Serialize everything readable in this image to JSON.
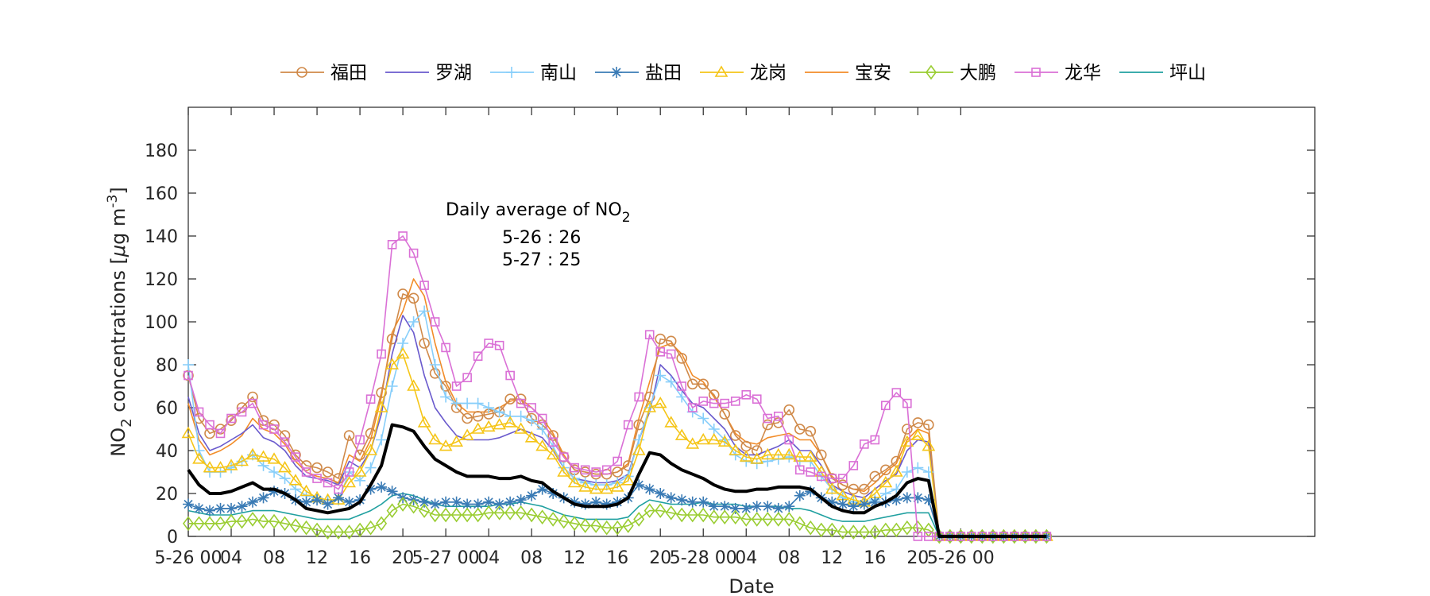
{
  "chart_data": {
    "type": "line",
    "xlabel": "Date",
    "ylabel": "NO",
    "ylabel_sub": "2",
    "ylabel_rest": " concentrations [",
    "ylabel_mu": "μ",
    "ylabel_unit": "g m",
    "ylabel_sup": "-3",
    "ylabel_close": "]",
    "ylim": [
      0,
      200
    ],
    "yticks": [
      0,
      20,
      40,
      60,
      80,
      100,
      120,
      140,
      160,
      180
    ],
    "xlim": [
      0,
      105
    ],
    "xticks": [
      {
        "x": 0,
        "label": "5-26 00"
      },
      {
        "x": 4,
        "label": "04"
      },
      {
        "x": 8,
        "label": "08"
      },
      {
        "x": 12,
        "label": "12"
      },
      {
        "x": 16,
        "label": "16"
      },
      {
        "x": 20,
        "label": "20"
      },
      {
        "x": 24,
        "label": "5-27 00"
      },
      {
        "x": 28,
        "label": "04"
      },
      {
        "x": 32,
        "label": "08"
      },
      {
        "x": 36,
        "label": "12"
      },
      {
        "x": 40,
        "label": "16"
      },
      {
        "x": 44,
        "label": "20"
      },
      {
        "x": 48,
        "label": "5-28 00"
      },
      {
        "x": 52,
        "label": "04"
      },
      {
        "x": 56,
        "label": "08"
      },
      {
        "x": 60,
        "label": "12"
      },
      {
        "x": 64,
        "label": "16"
      },
      {
        "x": 68,
        "label": "20"
      },
      {
        "x": 72,
        "label": "5-26 00"
      }
    ],
    "grid": false,
    "legend_placement": "top",
    "annotation": {
      "line1": "Daily average of NO",
      "line1_sub": "2",
      "line2": "5-26 : 26",
      "line3": "5-27 : 25"
    },
    "series": [
      {
        "name": "福田",
        "color": "#D08A4A",
        "marker": "circle",
        "values": [
          75,
          55,
          48,
          50,
          54,
          60,
          65,
          54,
          52,
          47,
          38,
          33,
          32,
          30,
          27,
          47,
          38,
          48,
          67,
          92,
          113,
          111,
          90,
          76,
          70,
          60,
          55,
          56,
          57,
          58,
          64,
          64,
          55,
          52,
          47,
          37,
          31,
          30,
          29,
          29,
          30,
          33,
          52,
          65,
          92,
          91,
          83,
          71,
          71,
          66,
          57,
          47,
          42,
          40,
          52,
          53,
          59,
          50,
          49,
          38,
          27,
          24,
          22,
          22,
          28,
          31,
          35,
          50,
          53,
          52,
          0,
          0,
          0,
          0,
          0,
          0,
          0,
          0,
          0,
          0,
          0
        ]
      },
      {
        "name": "罗湖",
        "color": "#6A5ACD",
        "marker": "none",
        "values": [
          65,
          48,
          40,
          42,
          45,
          48,
          52,
          46,
          44,
          40,
          33,
          28,
          27,
          26,
          24,
          35,
          32,
          40,
          57,
          85,
          103,
          95,
          75,
          60,
          53,
          47,
          45,
          45,
          45,
          46,
          48,
          50,
          48,
          46,
          40,
          32,
          27,
          26,
          25,
          25,
          26,
          29,
          45,
          58,
          80,
          75,
          68,
          62,
          60,
          55,
          50,
          42,
          38,
          38,
          40,
          42,
          45,
          40,
          40,
          33,
          24,
          21,
          19,
          18,
          22,
          26,
          29,
          40,
          45,
          44,
          0,
          0,
          0,
          0,
          0,
          0,
          0,
          0,
          0,
          0,
          0
        ]
      },
      {
        "name": "南山",
        "color": "#87CEFA",
        "marker": "plus",
        "values": [
          80,
          40,
          30,
          30,
          32,
          35,
          38,
          33,
          30,
          27,
          22,
          19,
          18,
          17,
          17,
          30,
          26,
          32,
          45,
          70,
          90,
          100,
          105,
          80,
          65,
          62,
          62,
          62,
          60,
          58,
          56,
          56,
          54,
          50,
          42,
          32,
          27,
          25,
          24,
          24,
          25,
          28,
          45,
          60,
          75,
          72,
          65,
          58,
          55,
          50,
          45,
          38,
          35,
          34,
          35,
          36,
          37,
          35,
          35,
          28,
          22,
          18,
          16,
          15,
          17,
          20,
          22,
          30,
          32,
          30,
          0,
          0,
          0,
          0,
          0,
          0,
          0,
          0,
          0,
          0,
          0
        ]
      },
      {
        "name": "盐田",
        "color": "#3A7BB5",
        "marker": "asterisk",
        "values": [
          15,
          13,
          12,
          13,
          13,
          14,
          16,
          18,
          21,
          20,
          17,
          16,
          17,
          15,
          18,
          16,
          17,
          22,
          23,
          21,
          18,
          17,
          16,
          15,
          16,
          16,
          15,
          15,
          16,
          15,
          16,
          17,
          19,
          22,
          20,
          18,
          16,
          15,
          16,
          15,
          16,
          18,
          24,
          22,
          20,
          18,
          17,
          16,
          16,
          14,
          14,
          13,
          13,
          14,
          14,
          13,
          14,
          19,
          21,
          18,
          16,
          15,
          14,
          15,
          16,
          16,
          17,
          18,
          18,
          17,
          0,
          0,
          0,
          0,
          0,
          0,
          0,
          0,
          0,
          0,
          0
        ]
      },
      {
        "name": "龙岗",
        "color": "#F5C518",
        "marker": "triangle",
        "values": [
          48,
          36,
          32,
          32,
          33,
          35,
          38,
          37,
          36,
          32,
          26,
          21,
          18,
          17,
          17,
          25,
          30,
          40,
          60,
          80,
          85,
          70,
          53,
          45,
          42,
          44,
          47,
          50,
          51,
          52,
          53,
          50,
          46,
          42,
          38,
          30,
          25,
          23,
          22,
          22,
          23,
          26,
          40,
          60,
          62,
          53,
          47,
          43,
          45,
          45,
          44,
          40,
          37,
          36,
          38,
          38,
          38,
          37,
          37,
          30,
          22,
          19,
          17,
          16,
          20,
          25,
          30,
          44,
          47,
          42,
          0,
          0,
          0,
          0,
          0,
          0,
          0,
          0,
          0,
          0,
          0
        ]
      },
      {
        "name": "宝安",
        "color": "#F28C28",
        "marker": "none",
        "values": [
          62,
          45,
          38,
          40,
          43,
          47,
          55,
          50,
          48,
          43,
          35,
          30,
          28,
          27,
          25,
          38,
          35,
          45,
          65,
          95,
          105,
          120,
          112,
          90,
          72,
          62,
          58,
          58,
          58,
          60,
          63,
          64,
          60,
          55,
          48,
          38,
          31,
          30,
          29,
          29,
          30,
          34,
          55,
          72,
          88,
          90,
          85,
          75,
          72,
          65,
          57,
          48,
          44,
          43,
          46,
          47,
          48,
          45,
          45,
          38,
          28,
          24,
          22,
          21,
          25,
          30,
          34,
          45,
          50,
          48,
          0,
          0,
          0,
          0,
          0,
          0,
          0,
          0,
          0,
          0,
          0
        ]
      },
      {
        "name": "大鹏",
        "color": "#9ACD32",
        "marker": "diamond",
        "values": [
          6,
          6,
          6,
          6,
          7,
          7,
          8,
          7,
          7,
          6,
          5,
          4,
          3,
          2,
          2,
          2,
          3,
          4,
          6,
          12,
          15,
          14,
          12,
          10,
          10,
          10,
          10,
          10,
          11,
          11,
          11,
          11,
          10,
          9,
          8,
          7,
          6,
          5,
          5,
          4,
          4,
          5,
          8,
          12,
          12,
          11,
          10,
          10,
          10,
          9,
          9,
          9,
          8,
          8,
          8,
          8,
          8,
          6,
          4,
          3,
          3,
          2,
          2,
          2,
          2,
          3,
          3,
          4,
          4,
          3,
          0,
          0,
          0,
          0,
          0,
          0,
          0,
          0,
          0,
          0,
          0
        ]
      },
      {
        "name": "龙华",
        "color": "#DA70D6",
        "marker": "square",
        "values": [
          75,
          58,
          52,
          48,
          55,
          58,
          62,
          52,
          50,
          44,
          37,
          30,
          27,
          25,
          22,
          30,
          45,
          64,
          85,
          136,
          140,
          132,
          117,
          100,
          88,
          70,
          74,
          84,
          90,
          89,
          75,
          62,
          60,
          55,
          44,
          37,
          32,
          31,
          30,
          31,
          35,
          52,
          65,
          94,
          86,
          85,
          70,
          60,
          63,
          62,
          62,
          63,
          66,
          64,
          55,
          56,
          45,
          31,
          30,
          28,
          27,
          27,
          33,
          43,
          45,
          61,
          67,
          62,
          0,
          0,
          0,
          0,
          0,
          0,
          0,
          0,
          0,
          0,
          0,
          0,
          0
        ]
      },
      {
        "name": "坪山",
        "color": "#20A0A0",
        "marker": "none",
        "values": [
          12,
          11,
          10,
          10,
          10,
          11,
          12,
          12,
          12,
          11,
          10,
          9,
          8,
          8,
          8,
          8,
          10,
          12,
          15,
          19,
          20,
          19,
          17,
          15,
          14,
          14,
          14,
          14,
          14,
          15,
          15,
          16,
          15,
          14,
          12,
          10,
          9,
          8,
          8,
          8,
          8,
          9,
          14,
          17,
          16,
          15,
          15,
          15,
          16,
          15,
          15,
          15,
          14,
          14,
          14,
          14,
          13,
          13,
          12,
          10,
          8,
          7,
          7,
          7,
          8,
          9,
          10,
          11,
          11,
          11,
          0,
          0,
          0,
          0,
          0,
          0,
          0,
          0,
          0,
          0,
          0
        ]
      },
      {
        "name": "",
        "color": "#000000",
        "marker": "none",
        "bold": true,
        "values": [
          31,
          24,
          20,
          20,
          21,
          23,
          25,
          22,
          22,
          20,
          17,
          13,
          12,
          11,
          12,
          13,
          16,
          24,
          33,
          52,
          51,
          49,
          42,
          36,
          33,
          30,
          28,
          28,
          28,
          27,
          27,
          28,
          26,
          25,
          21,
          18,
          15,
          14,
          14,
          14,
          15,
          18,
          29,
          39,
          38,
          34,
          31,
          29,
          27,
          24,
          22,
          21,
          21,
          22,
          22,
          23,
          23,
          23,
          22,
          18,
          14,
          12,
          11,
          11,
          14,
          16,
          19,
          25,
          27,
          26,
          0,
          0,
          0,
          0,
          0,
          0,
          0,
          0,
          0,
          0,
          0
        ]
      }
    ]
  }
}
